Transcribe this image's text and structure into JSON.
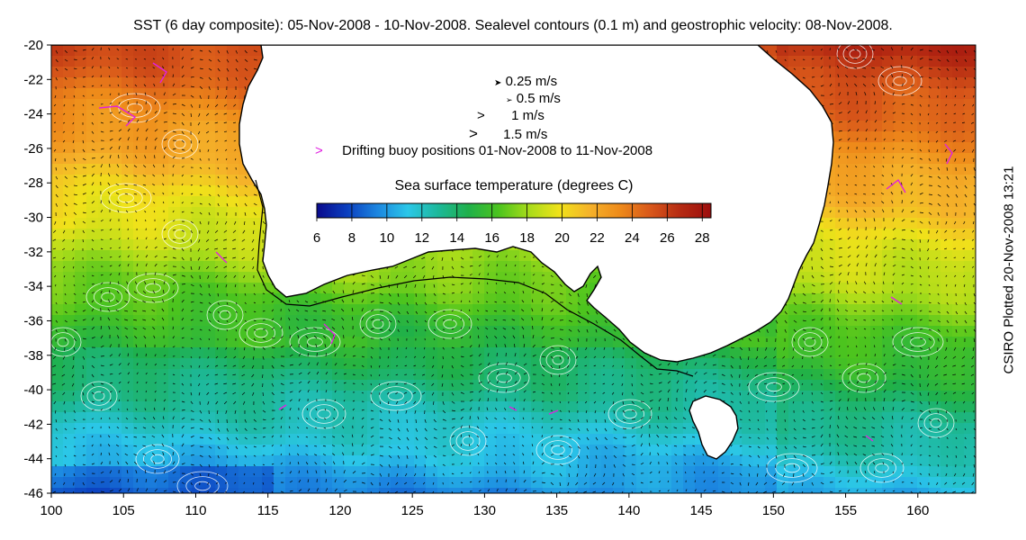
{
  "title": "SST (6 day composite): 05-Nov-2008 - 10-Nov-2008. Sealevel contours (0.1 m) and geostrophic velocity: 08-Nov-2008.",
  "side_note": "CSIRO Plotted 20-Nov-2008 13:21",
  "velocity_legend": [
    {
      "label": "0.25 m/s",
      "symbol": "small-arrow-icon"
    },
    {
      "label": "0.5 m/s",
      "symbol": "small-arrow-icon"
    },
    {
      "label": "1 m/s",
      "symbol": "arrow-icon"
    },
    {
      "label": "1.5 m/s",
      "symbol": "large-arrow-icon"
    }
  ],
  "buoy_legend": {
    "marker": ">",
    "label": "Drifting buoy positions 01-Nov-2008 to 11-Nov-2008",
    "color": "#e020e0"
  },
  "colorbar": {
    "title": "Sea surface temperature (degrees C)",
    "ticks": [
      "6",
      "8",
      "10",
      "12",
      "14",
      "16",
      "18",
      "20",
      "22",
      "24",
      "26",
      "28"
    ],
    "range": [
      6,
      28.5
    ],
    "colors": [
      "#0a0a8c",
      "#0b3fbf",
      "#1c86e0",
      "#2bc7e8",
      "#1db89a",
      "#1fb04a",
      "#4cc41e",
      "#a8dc1a",
      "#f0e21a",
      "#f5b22a",
      "#ee8a1a",
      "#d8571a",
      "#b52a12",
      "#9c0d0d"
    ]
  },
  "map": {
    "x_ticks": [
      "100",
      "105",
      "110",
      "115",
      "120",
      "125",
      "130",
      "135",
      "140",
      "145",
      "150",
      "155",
      "160"
    ],
    "y_ticks": [
      "-20",
      "-22",
      "-24",
      "-26",
      "-28",
      "-30",
      "-32",
      "-34",
      "-36",
      "-38",
      "-40",
      "-42",
      "-44",
      "-46"
    ],
    "lon_range": [
      100,
      164
    ],
    "lat_range": [
      -46,
      -20
    ],
    "land_color": "#ffffff",
    "coast_color": "#000000",
    "contour_color": "#ffffff",
    "buoy_color": "#e020e0"
  }
}
